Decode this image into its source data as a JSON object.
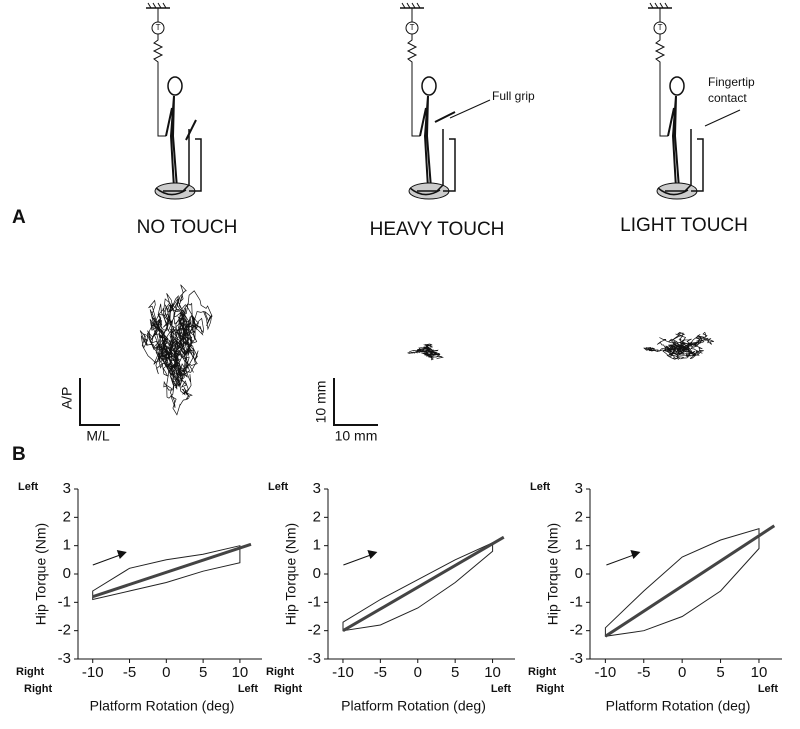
{
  "figure": {
    "panel_a": "A",
    "panel_b": "B",
    "conditions": [
      "NO TOUCH",
      "HEAVY TOUCH",
      "LIGHT TOUCH"
    ],
    "grip_label": "Full grip",
    "fingertip_label": [
      "Fingertip",
      "contact"
    ],
    "scale_bar_1": {
      "vertical": "A/P",
      "horizontal": "M/L"
    },
    "scale_bar_2": {
      "vertical": "10 mm",
      "horizontal": "10 mm"
    }
  },
  "chart_data": [
    {
      "type": "line",
      "xlabel": "Platform Rotation (deg)",
      "ylabel": "Hip Torque (Nm)",
      "ylabel_top": "Left",
      "ylabel_bottom": "Right",
      "xlabel_left": "Right",
      "xlabel_right": "Left",
      "xlim": [
        -12,
        13
      ],
      "ylim": [
        -3,
        3
      ],
      "xticks": [
        -10,
        -5,
        0,
        5,
        10
      ],
      "yticks": [
        -3,
        -2,
        -1,
        0,
        1,
        2,
        3
      ],
      "series": [
        {
          "color": "#222222",
          "x": [
            -10,
            -5,
            0,
            5,
            10,
            10,
            5,
            0,
            -5,
            -10
          ],
          "values": [
            -0.6,
            0.2,
            0.5,
            0.7,
            1.0,
            0.4,
            0.1,
            -0.3,
            -0.6,
            -0.9
          ]
        },
        {
          "color": "#444444",
          "x": [
            -10,
            11.5
          ],
          "values": [
            -0.8,
            1.05
          ]
        }
      ]
    },
    {
      "type": "line",
      "xlabel": "Platform Rotation (deg)",
      "ylabel": "Hip Torque (Nm)",
      "ylabel_top": "Left",
      "ylabel_bottom": "Right",
      "xlabel_left": "Right",
      "xlabel_right": "Left",
      "xlim": [
        -12,
        13
      ],
      "ylim": [
        -3,
        3
      ],
      "xticks": [
        -10,
        -5,
        0,
        5,
        10
      ],
      "yticks": [
        -3,
        -2,
        -1,
        0,
        1,
        2,
        3
      ],
      "series": [
        {
          "color": "#222222",
          "x": [
            -10,
            -5,
            0,
            5,
            10,
            10,
            5,
            0,
            -5,
            -10
          ],
          "values": [
            -1.7,
            -0.9,
            -0.2,
            0.5,
            1.1,
            0.8,
            -0.3,
            -1.2,
            -1.8,
            -2.0
          ]
        },
        {
          "color": "#444444",
          "x": [
            -10,
            11.5
          ],
          "values": [
            -2.0,
            1.3
          ]
        }
      ]
    },
    {
      "type": "line",
      "xlabel": "Platform Rotation (deg)",
      "ylabel": "Hip Torque (Nm)",
      "ylabel_top": "Left",
      "ylabel_bottom": "Right",
      "xlabel_left": "Right",
      "xlabel_right": "Left",
      "xlim": [
        -12,
        13
      ],
      "ylim": [
        -3,
        3
      ],
      "xticks": [
        -10,
        -5,
        0,
        5,
        10
      ],
      "yticks": [
        -3,
        -2,
        -1,
        0,
        1,
        2,
        3
      ],
      "series": [
        {
          "color": "#222222",
          "x": [
            -10,
            -5,
            0,
            5,
            10,
            10,
            5,
            0,
            -5,
            -10
          ],
          "values": [
            -1.9,
            -0.6,
            0.6,
            1.2,
            1.6,
            0.9,
            -0.6,
            -1.5,
            -2.0,
            -2.2
          ]
        },
        {
          "color": "#444444",
          "x": [
            -10,
            12
          ],
          "values": [
            -2.2,
            1.7
          ]
        }
      ]
    }
  ]
}
